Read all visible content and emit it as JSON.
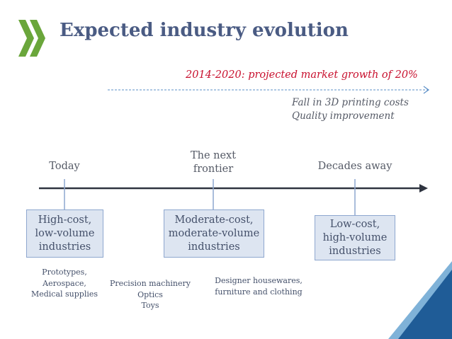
{
  "header": {
    "title": "Expected industry evolution",
    "logo_icon": "oecd-chevron-logo"
  },
  "trend": {
    "growth_text": "2014-2020: projected market growth of 20%",
    "drivers": [
      "Fall in 3D printing costs",
      "Quality improvement"
    ]
  },
  "stages": [
    {
      "label": [
        "Today"
      ],
      "box": [
        "High-cost,",
        "low-volume",
        "industries"
      ],
      "examples": [
        "Prototypes,",
        "Aerospace,",
        "Medical supplies"
      ]
    },
    {
      "label": [
        "The next",
        "frontier"
      ],
      "box": [
        "Moderate-cost,",
        "moderate-volume",
        "industries"
      ],
      "examples": [
        "Precision machinery",
        "Optics",
        "Toys"
      ]
    },
    {
      "label": [
        "Decades away"
      ],
      "box": [
        "Low-cost,",
        "high-volume",
        "industries"
      ],
      "examples": [
        "Designer housewares,",
        "furniture and clothing"
      ]
    }
  ],
  "colors": {
    "title": "#4a5b83",
    "growth": "#c8102e",
    "logo": "#6aa63b",
    "corner_dark": "#1f5c97",
    "corner_light": "#7fb2d8",
    "box_fill": "#dde5f1",
    "box_border": "#8ea7cf"
  }
}
